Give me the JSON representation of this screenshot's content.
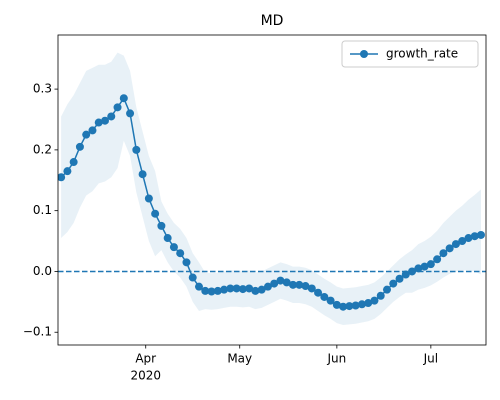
{
  "chart_data": {
    "type": "line",
    "title": "MD",
    "x": [
      65,
      67,
      69,
      71,
      73,
      75,
      77,
      79,
      81,
      83,
      85,
      87,
      89,
      91,
      93,
      95,
      97,
      99,
      101,
      103,
      105,
      107,
      109,
      111,
      113,
      115,
      117,
      119,
      121,
      123,
      125,
      127,
      129,
      131,
      133,
      135,
      137,
      139,
      141,
      143,
      145,
      147,
      149,
      151,
      153,
      155,
      157,
      159,
      161,
      163,
      165,
      167,
      169,
      171,
      173,
      175,
      177,
      179,
      181,
      183,
      185,
      187,
      189,
      191,
      193,
      195,
      197,
      199
    ],
    "series": [
      {
        "name": "growth_rate",
        "color": "#1f77b4",
        "values": [
          0.155,
          0.165,
          0.18,
          0.205,
          0.225,
          0.232,
          0.245,
          0.248,
          0.255,
          0.27,
          0.285,
          0.26,
          0.2,
          0.16,
          0.12,
          0.095,
          0.075,
          0.055,
          0.04,
          0.03,
          0.015,
          -0.01,
          -0.025,
          -0.032,
          -0.033,
          -0.032,
          -0.03,
          -0.028,
          -0.028,
          -0.029,
          -0.028,
          -0.032,
          -0.03,
          -0.025,
          -0.02,
          -0.015,
          -0.018,
          -0.022,
          -0.022,
          -0.024,
          -0.028,
          -0.035,
          -0.042,
          -0.048,
          -0.055,
          -0.058,
          -0.057,
          -0.056,
          -0.054,
          -0.052,
          -0.048,
          -0.04,
          -0.03,
          -0.02,
          -0.012,
          -0.005,
          0.0,
          0.005,
          0.008,
          0.012,
          0.02,
          0.03,
          0.038,
          0.045,
          0.05,
          0.055,
          0.058,
          0.06
        ],
        "upper": [
          0.255,
          0.275,
          0.29,
          0.31,
          0.33,
          0.335,
          0.34,
          0.34,
          0.345,
          0.36,
          0.355,
          0.33,
          0.27,
          0.23,
          0.19,
          0.165,
          0.115,
          0.095,
          0.08,
          0.07,
          0.055,
          0.03,
          0.015,
          -0.002,
          -0.003,
          -0.002,
          0.0,
          0.002,
          0.002,
          0.001,
          0.002,
          -0.002,
          0.0,
          0.005,
          0.01,
          0.015,
          0.012,
          0.008,
          0.008,
          0.006,
          0.002,
          -0.005,
          -0.012,
          -0.018,
          -0.025,
          -0.028,
          -0.027,
          -0.026,
          -0.024,
          -0.022,
          -0.018,
          -0.01,
          0.0,
          0.01,
          0.02,
          0.028,
          0.035,
          0.045,
          0.05,
          0.057,
          0.067,
          0.08,
          0.09,
          0.1,
          0.108,
          0.118,
          0.126,
          0.135
        ],
        "lower": [
          0.055,
          0.065,
          0.08,
          0.105,
          0.125,
          0.132,
          0.145,
          0.148,
          0.155,
          0.17,
          0.215,
          0.19,
          0.13,
          0.09,
          0.05,
          0.025,
          0.035,
          0.015,
          0.0,
          -0.01,
          -0.025,
          -0.05,
          -0.065,
          -0.062,
          -0.063,
          -0.062,
          -0.06,
          -0.058,
          -0.058,
          -0.059,
          -0.058,
          -0.062,
          -0.06,
          -0.055,
          -0.05,
          -0.045,
          -0.048,
          -0.052,
          -0.052,
          -0.054,
          -0.058,
          -0.065,
          -0.072,
          -0.078,
          -0.085,
          -0.088,
          -0.087,
          -0.086,
          -0.084,
          -0.082,
          -0.078,
          -0.07,
          -0.06,
          -0.05,
          -0.042,
          -0.035,
          -0.035,
          -0.03,
          -0.027,
          -0.023,
          -0.017,
          -0.01,
          -0.004,
          0.0,
          0.002,
          0.002,
          0.0,
          -0.005
        ]
      }
    ],
    "xlim": [
      64,
      200.6
    ],
    "xticks": [
      {
        "value": 92,
        "label": "Apr"
      },
      {
        "value": 122,
        "label": "May"
      },
      {
        "value": 153,
        "label": "Jun"
      },
      {
        "value": 183,
        "label": "Jul"
      }
    ],
    "x_offset_label": "2020",
    "ylim": [
      -0.121,
      0.389
    ],
    "yticks": [
      {
        "value": -0.1,
        "label": "−0.1"
      },
      {
        "value": 0,
        "label": "0.0"
      },
      0.1,
      0.2,
      0.3
    ],
    "hline": 0,
    "legend": "upper right"
  }
}
